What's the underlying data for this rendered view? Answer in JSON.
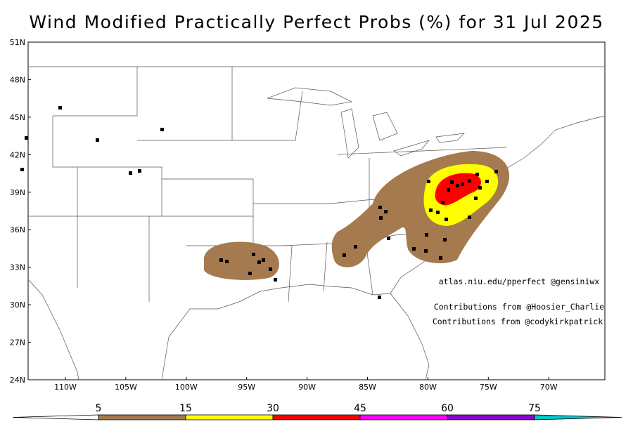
{
  "title": "Wind Modified Practically Perfect Probs (%) for 31 Jul 2025",
  "lat_labels": [
    "51N",
    "48N",
    "45N",
    "42N",
    "39N",
    "36N",
    "33N",
    "30N",
    "27N",
    "24N"
  ],
  "lon_labels": [
    "110W",
    "105W",
    "100W",
    "95W",
    "90W",
    "85W",
    "80W",
    "75W",
    "70W"
  ],
  "credits": [
    "atlas.niu.edu/pperfect @gensiniwx",
    "Contributions from @Hoosier_Charlie",
    "Contributions from @codykirkpatrick"
  ],
  "colorbar": {
    "labels": [
      "5",
      "15",
      "30",
      "45",
      "60",
      "75"
    ],
    "colors": [
      "#ffffff",
      "#a47a4e",
      "#ffff00",
      "#ff0000",
      "#ff00ff",
      "#8c00d2",
      "#00c8c8"
    ]
  }
}
